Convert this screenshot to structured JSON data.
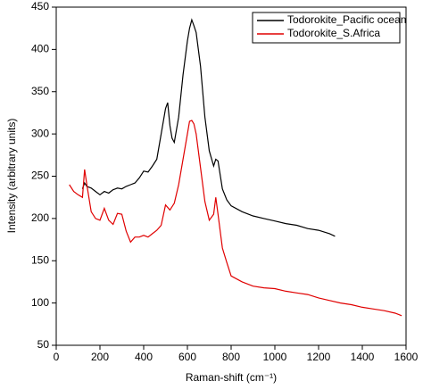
{
  "chart_data": {
    "type": "line",
    "x_label": "Raman-shift (cm⁻¹)",
    "y_label": "Intensity (arbitrary units)",
    "xlim": [
      0,
      1600
    ],
    "xticks": [
      0,
      200,
      400,
      600,
      800,
      1000,
      1200,
      1400,
      1600
    ],
    "ylim": [
      50,
      450
    ],
    "yticks": [
      50,
      100,
      150,
      200,
      250,
      300,
      350,
      400,
      450
    ],
    "legend": "top-right",
    "series": [
      {
        "name": "Todorokite_Pacific ocean",
        "color": "#000000",
        "x": [
          120,
          130,
          140,
          160,
          180,
          200,
          220,
          240,
          260,
          280,
          300,
          320,
          340,
          360,
          380,
          400,
          420,
          440,
          460,
          480,
          500,
          510,
          520,
          530,
          540,
          560,
          580,
          600,
          610,
          620,
          630,
          640,
          660,
          680,
          700,
          720,
          730,
          740,
          760,
          780,
          800,
          850,
          900,
          950,
          1000,
          1050,
          1100,
          1150,
          1200,
          1250,
          1275
        ],
        "values": [
          235,
          242,
          238,
          236,
          232,
          228,
          232,
          230,
          234,
          236,
          235,
          238,
          240,
          242,
          248,
          256,
          255,
          262,
          270,
          300,
          330,
          337,
          310,
          295,
          290,
          320,
          370,
          410,
          425,
          435,
          428,
          420,
          380,
          320,
          280,
          262,
          270,
          268,
          235,
          222,
          215,
          208,
          203,
          200,
          197,
          194,
          192,
          188,
          186,
          182,
          179
        ]
      },
      {
        "name": "Todorokite_S.Africa",
        "color": "#e00000",
        "x": [
          60,
          80,
          100,
          120,
          130,
          140,
          160,
          180,
          200,
          220,
          240,
          260,
          280,
          300,
          320,
          340,
          360,
          380,
          400,
          420,
          440,
          460,
          480,
          500,
          520,
          540,
          560,
          580,
          600,
          610,
          620,
          630,
          640,
          660,
          680,
          700,
          720,
          730,
          740,
          760,
          780,
          800,
          850,
          900,
          950,
          1000,
          1050,
          1100,
          1150,
          1200,
          1250,
          1300,
          1350,
          1400,
          1450,
          1500,
          1550,
          1580
        ],
        "values": [
          240,
          232,
          228,
          225,
          258,
          240,
          208,
          200,
          198,
          212,
          198,
          193,
          206,
          205,
          185,
          172,
          178,
          178,
          180,
          178,
          182,
          186,
          192,
          216,
          210,
          218,
          240,
          270,
          300,
          315,
          316,
          312,
          300,
          260,
          220,
          198,
          205,
          225,
          205,
          165,
          148,
          132,
          125,
          120,
          118,
          117,
          114,
          112,
          110,
          106,
          103,
          100,
          98,
          95,
          93,
          91,
          88,
          85
        ]
      }
    ]
  }
}
